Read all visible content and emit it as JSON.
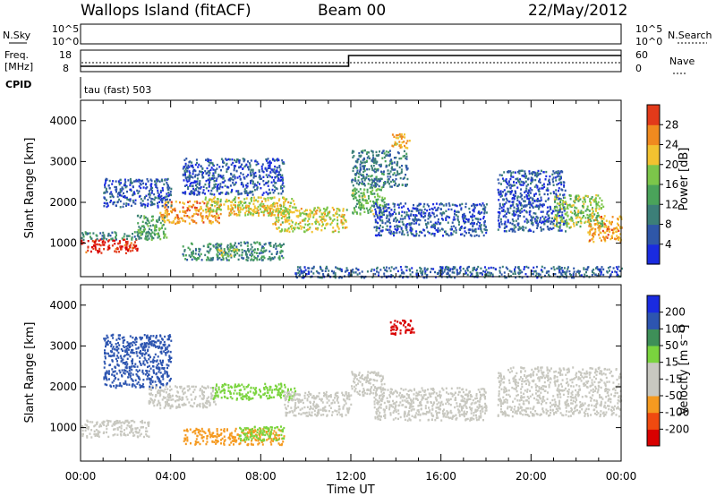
{
  "header": {
    "title_left": "Wallops Island (fitACF)",
    "title_center": "Beam 00",
    "title_right": "22/May/2012"
  },
  "top_panels": {
    "nsky_label": "N.Sky",
    "nsearch_label": "N.Search",
    "left_tick_high": "10^5",
    "left_tick_low": "10^0",
    "right_tick_high": "10^5",
    "right_tick_low": "10^0",
    "freq_label": "Freq.",
    "freq_unit": "[MHz]",
    "freq_tick_high": "18",
    "freq_tick_low": "8",
    "nave_label": "Nave",
    "nave_tick_high": "60",
    "nave_tick_low": "0",
    "cpid_label": "CPID",
    "cpid_text": "tau (fast) 503"
  },
  "colors": {
    "power_scale": [
      "#1a2be0",
      "#2f57a8",
      "#3c7f78",
      "#4aa35a",
      "#7cc64a",
      "#f2c230",
      "#f08a1f",
      "#e23a1a",
      "#d90000"
    ],
    "velocity_scale": [
      "#d90000",
      "#f04a10",
      "#f59a20",
      "#c8c8c0",
      "#c8c8c0",
      "#7ad43e",
      "#3e8f58",
      "#2d55b0",
      "#1a2be0"
    ]
  },
  "chart_data": [
    {
      "type": "heatmap",
      "name": "power",
      "ylabel": "Slant Range [km]",
      "ylim": [
        180,
        4500
      ],
      "yticks": [
        "1000",
        "2000",
        "3000",
        "4000"
      ],
      "xlim": [
        0,
        24
      ],
      "colorbar_label": "Power [dB]",
      "colorbar_ticks": [
        "4",
        "8",
        "12",
        "16",
        "20",
        "24",
        "28"
      ],
      "colorbar_range": [
        0,
        32
      ],
      "regions": [
        {
          "t0": 0.0,
          "t1": 2.5,
          "r0": 780,
          "r1": 1120,
          "v": 28
        },
        {
          "t0": 0.0,
          "t1": 3.2,
          "r0": 1100,
          "r1": 1300,
          "v": 10
        },
        {
          "t0": 2.5,
          "t1": 3.8,
          "r0": 1100,
          "r1": 1700,
          "v": 12
        },
        {
          "t0": 3.5,
          "t1": 6.2,
          "r0": 1500,
          "r1": 2050,
          "v": 22
        },
        {
          "t0": 5.5,
          "t1": 9.5,
          "r0": 1750,
          "r1": 2150,
          "v": 18
        },
        {
          "t0": 6.5,
          "t1": 9.0,
          "r0": 1700,
          "r1": 1950,
          "v": 20
        },
        {
          "t0": 4.5,
          "t1": 9.0,
          "r0": 600,
          "r1": 1050,
          "v": 10
        },
        {
          "t0": 6.0,
          "t1": 7.0,
          "r0": 700,
          "r1": 900,
          "v": 16
        },
        {
          "t0": 8.5,
          "t1": 11.8,
          "r0": 1300,
          "r1": 1900,
          "v": 18
        },
        {
          "t0": 1.0,
          "t1": 4.0,
          "r0": 1900,
          "r1": 2600,
          "v": 5
        },
        {
          "t0": 4.5,
          "t1": 9.0,
          "r0": 2200,
          "r1": 3100,
          "v": 5
        },
        {
          "t0": 12.0,
          "t1": 13.5,
          "r0": 1700,
          "r1": 2400,
          "v": 14
        },
        {
          "t0": 12.0,
          "t1": 14.5,
          "r0": 2400,
          "r1": 3300,
          "v": 8
        },
        {
          "t0": 13.8,
          "t1": 14.6,
          "r0": 3350,
          "r1": 3700,
          "v": 20
        },
        {
          "t0": 13.0,
          "t1": 18.0,
          "r0": 1200,
          "r1": 2000,
          "v": 5
        },
        {
          "t0": 18.5,
          "t1": 21.5,
          "r0": 1300,
          "r1": 2800,
          "v": 5
        },
        {
          "t0": 21.0,
          "t1": 23.2,
          "r0": 1400,
          "r1": 2200,
          "v": 16
        },
        {
          "t0": 22.5,
          "t1": 24.0,
          "r0": 1050,
          "r1": 1700,
          "v": 22
        },
        {
          "t0": 9.5,
          "t1": 24.0,
          "r0": 180,
          "r1": 450,
          "v": 6
        }
      ]
    },
    {
      "type": "heatmap",
      "name": "velocity",
      "ylabel": "Slant Range [km]",
      "ylim": [
        180,
        4500
      ],
      "yticks": [
        "1000",
        "2000",
        "3000",
        "4000"
      ],
      "xlim": [
        0,
        24
      ],
      "xlabel": "Time UT",
      "xticks": [
        "00:00",
        "04:00",
        "08:00",
        "12:00",
        "16:00",
        "20:00",
        "00:00"
      ],
      "colorbar_label": "Velocity [m s⁻¹]",
      "colorbar_ticks": [
        "200",
        "100",
        "50",
        "15",
        "-15",
        "-50",
        "-100",
        "-200"
      ],
      "regions": [
        {
          "t0": 0.0,
          "t1": 3.0,
          "r0": 780,
          "r1": 1200,
          "v": 0
        },
        {
          "t0": 3.0,
          "t1": 6.0,
          "r0": 1500,
          "r1": 2050,
          "v": 0
        },
        {
          "t0": 5.8,
          "t1": 9.5,
          "r0": 1700,
          "r1": 2100,
          "v": 40
        },
        {
          "t0": 4.5,
          "t1": 9.0,
          "r0": 600,
          "r1": 1000,
          "v": -60
        },
        {
          "t0": 7.0,
          "t1": 9.0,
          "r0": 700,
          "r1": 1050,
          "v": 25
        },
        {
          "t0": 9.0,
          "t1": 12.0,
          "r0": 1300,
          "r1": 1900,
          "v": 0
        },
        {
          "t0": 12.0,
          "t1": 13.5,
          "r0": 1800,
          "r1": 2400,
          "v": 0
        },
        {
          "t0": 13.7,
          "t1": 14.8,
          "r0": 3300,
          "r1": 3650,
          "v": -180
        },
        {
          "t0": 13.0,
          "t1": 18.0,
          "r0": 1200,
          "r1": 2000,
          "v": 0
        },
        {
          "t0": 18.5,
          "t1": 24.0,
          "r0": 1300,
          "r1": 2500,
          "v": 0
        },
        {
          "t0": 1.0,
          "t1": 4.0,
          "r0": 2000,
          "r1": 3300,
          "v": 120
        }
      ]
    }
  ],
  "top_series": {
    "nsky_level": 0.8,
    "freq_steps": [
      {
        "t": 0.0,
        "mhz": 10.5
      },
      {
        "t": 11.9,
        "mhz": 15.5
      }
    ],
    "nave_level": 25
  }
}
